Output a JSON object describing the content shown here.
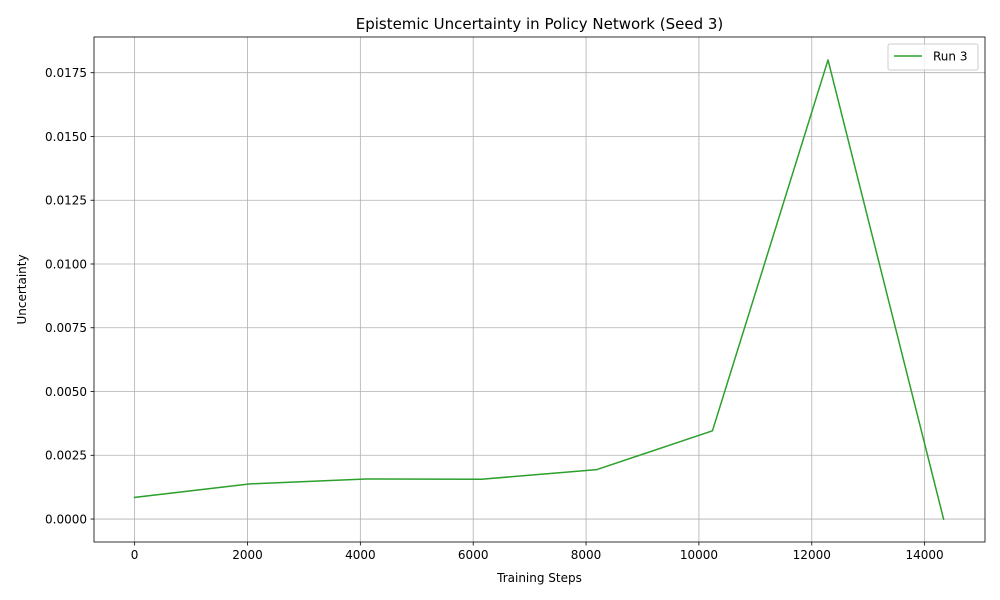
{
  "chart_data": {
    "type": "line",
    "title": "Epistemic Uncertainty in Policy Network (Seed 3)",
    "xlabel": "Training Steps",
    "ylabel": "Uncertainty",
    "xlim": [
      -720,
      15070
    ],
    "ylim": [
      -0.0009,
      0.0189
    ],
    "xticks": [
      0,
      2000,
      4000,
      6000,
      8000,
      10000,
      12000,
      14000
    ],
    "xtick_labels": [
      "0",
      "2000",
      "4000",
      "6000",
      "8000",
      "10000",
      "12000",
      "14000"
    ],
    "yticks": [
      0.0,
      0.0025,
      0.005,
      0.0075,
      0.01,
      0.0125,
      0.015,
      0.0175
    ],
    "ytick_labels": [
      "0.0000",
      "0.0025",
      "0.0050",
      "0.0075",
      "0.0100",
      "0.0125",
      "0.0150",
      "0.0175"
    ],
    "grid": true,
    "legend_position": "top-right",
    "series": [
      {
        "name": "Run 3",
        "color": "#2ca02c",
        "x": [
          0,
          2048,
          4096,
          6144,
          8192,
          10240,
          12288,
          14336
        ],
        "values": [
          0.00085,
          0.00138,
          0.00157,
          0.00156,
          0.00194,
          0.00346,
          0.018,
          0.0
        ]
      }
    ]
  }
}
